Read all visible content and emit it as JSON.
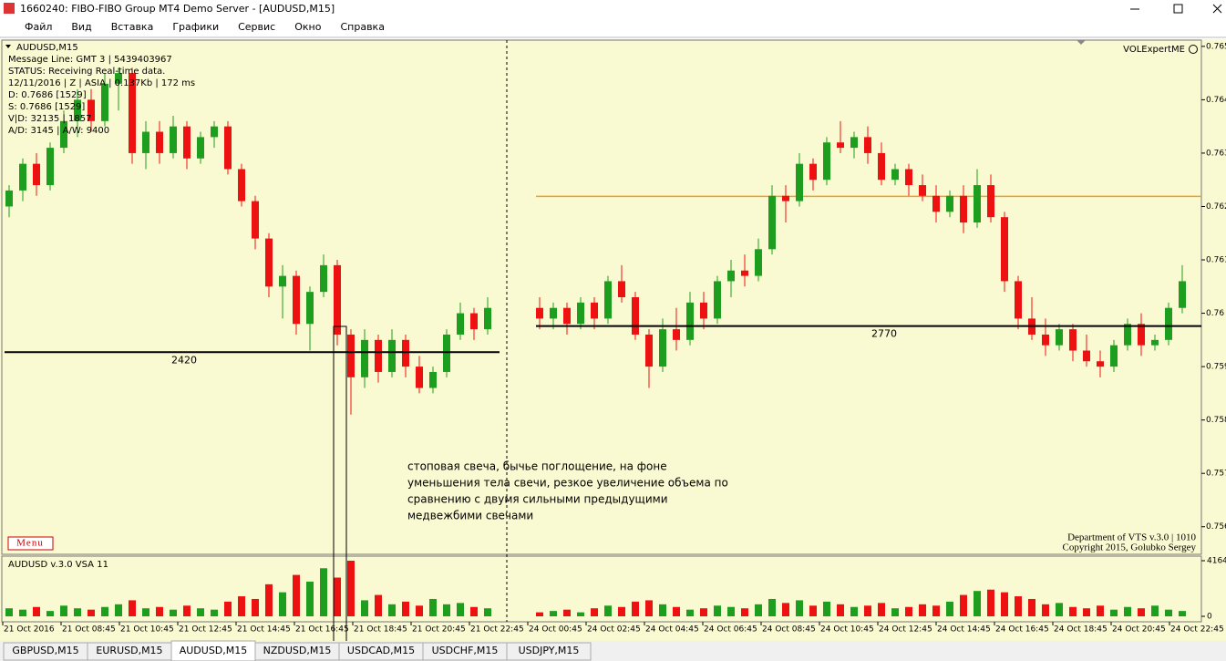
{
  "window": {
    "title": "1660240: FIBO-FIBO Group MT4 Demo Server - [AUDUSD,M15]"
  },
  "menu": [
    "Файл",
    "Вид",
    "Вставка",
    "Графики",
    "Сервис",
    "Окно",
    "Справка"
  ],
  "chart": {
    "type": "candlestick",
    "symbol": "AUDUSD,M15",
    "info": [
      "Message Line: GMT 3 | 5439403967",
      "STATUS:  Receiving Real-time data.",
      "12/11/2016 | Z | ASIA | 0.137Kb | 172 ms",
      "D: 0.7686  [1529]",
      "S: 0.7686  [1529]",
      "V|D: 32135 | 1857",
      "A/D: 3145 | A/W: 9400"
    ],
    "expert": "VOLExpertME",
    "menu_button": "Menu",
    "footer": [
      "Department of VTS  v.3.0 | 1010",
      "Copyright 2015, Golubko Sergey"
    ],
    "annotation": [
      "стоповая свеча, бычье поглощение, на фоне",
      "уменьшения тела свечи, резкое увеличение объема по",
      "сравнению с двумя сильными предыдущими",
      "медвежбими свечами"
    ],
    "bull_color": "#1e9e1e",
    "bear_color": "#ee1111",
    "ylim": [
      0.7555,
      0.7651
    ],
    "yticks": [
      0.765,
      0.764,
      0.763,
      0.762,
      0.761,
      0.76,
      0.759,
      0.758,
      0.757,
      0.756
    ],
    "x_labels": [
      "21 Oct 2016",
      "21 Oct 08:45",
      "21 Oct 10:45",
      "21 Oct 12:45",
      "21 Oct 14:45",
      "21 Oct 16:45",
      "21 Oct 18:45",
      "21 Oct 20:45",
      "21 Oct 22:45",
      "24 Oct 00:45",
      "24 Oct 02:45",
      "24 Oct 04:45",
      "24 Oct 06:45",
      "24 Oct 08:45",
      "24 Oct 10:45",
      "24 Oct 12:45",
      "24 Oct 14:45",
      "24 Oct 16:45",
      "24 Oct 18:45",
      "24 Oct 20:45",
      "24 Oct 22:45"
    ],
    "volume_panel": {
      "title": "AUDUSD v.3.0 VSA 11",
      "ylim": [
        0,
        4164
      ],
      "yticks": [
        4164,
        0
      ]
    },
    "sections": [
      {
        "level": {
          "value": 0.75927,
          "label": "2420"
        },
        "candles": [
          [
            0.762,
            0.7624,
            0.7618,
            0.7623
          ],
          [
            0.7623,
            0.7629,
            0.7621,
            0.7628
          ],
          [
            0.7628,
            0.763,
            0.7622,
            0.7624
          ],
          [
            0.7624,
            0.7632,
            0.7623,
            0.7631
          ],
          [
            0.7631,
            0.7638,
            0.763,
            0.7636
          ],
          [
            0.7636,
            0.7642,
            0.7633,
            0.764
          ],
          [
            0.764,
            0.7642,
            0.7634,
            0.7636
          ],
          [
            0.7636,
            0.7645,
            0.7635,
            0.7643
          ],
          [
            0.7643,
            0.7646,
            0.7638,
            0.7645
          ],
          [
            0.7645,
            0.7646,
            0.7628,
            0.763
          ],
          [
            0.763,
            0.7636,
            0.7627,
            0.7634
          ],
          [
            0.7634,
            0.7636,
            0.7628,
            0.763
          ],
          [
            0.763,
            0.7637,
            0.7629,
            0.7635
          ],
          [
            0.7635,
            0.7636,
            0.7627,
            0.7629
          ],
          [
            0.7629,
            0.7634,
            0.7628,
            0.7633
          ],
          [
            0.7633,
            0.7636,
            0.7631,
            0.7635
          ],
          [
            0.7635,
            0.7636,
            0.7626,
            0.7627
          ],
          [
            0.7627,
            0.7628,
            0.762,
            0.7621
          ],
          [
            0.7621,
            0.7622,
            0.7612,
            0.7614
          ],
          [
            0.7614,
            0.7615,
            0.7603,
            0.7605
          ],
          [
            0.7605,
            0.7609,
            0.7599,
            0.7607
          ],
          [
            0.7607,
            0.7608,
            0.7596,
            0.7598
          ],
          [
            0.7598,
            0.7605,
            0.7593,
            0.7604
          ],
          [
            0.7604,
            0.7611,
            0.7603,
            0.7609
          ],
          [
            0.7609,
            0.761,
            0.7594,
            0.7596
          ],
          [
            0.7596,
            0.7597,
            0.7581,
            0.7588
          ],
          [
            0.7588,
            0.7597,
            0.7586,
            0.7595
          ],
          [
            0.7595,
            0.7596,
            0.7587,
            0.7589
          ],
          [
            0.7589,
            0.7597,
            0.7588,
            0.7595
          ],
          [
            0.7595,
            0.7596,
            0.7588,
            0.759
          ],
          [
            0.759,
            0.7592,
            0.7585,
            0.7586
          ],
          [
            0.7586,
            0.759,
            0.7585,
            0.7589
          ],
          [
            0.7589,
            0.7597,
            0.7588,
            0.7596
          ],
          [
            0.7596,
            0.7602,
            0.7595,
            0.76
          ],
          [
            0.76,
            0.7601,
            0.7595,
            0.7597
          ],
          [
            0.7597,
            0.7603,
            0.7596,
            0.7601
          ]
        ],
        "volumes": [
          600,
          500,
          700,
          400,
          800,
          600,
          500,
          700,
          900,
          1200,
          600,
          700,
          500,
          800,
          600,
          500,
          1100,
          1500,
          1300,
          2400,
          1800,
          3100,
          2600,
          3600,
          2900,
          4164,
          1200,
          1600,
          900,
          1100,
          800,
          1300,
          900,
          1000,
          700,
          600
        ]
      },
      {
        "level": {
          "value": 0.75976,
          "label": "2770"
        },
        "extra_level": {
          "value": 0.76219,
          "color": "#f0a020"
        },
        "candles": [
          [
            0.7601,
            0.7603,
            0.7597,
            0.7599
          ],
          [
            0.7599,
            0.7602,
            0.7597,
            0.7601
          ],
          [
            0.7601,
            0.7602,
            0.7596,
            0.7598
          ],
          [
            0.7598,
            0.7603,
            0.7597,
            0.7602
          ],
          [
            0.7602,
            0.7603,
            0.7597,
            0.7599
          ],
          [
            0.7599,
            0.7607,
            0.7598,
            0.7606
          ],
          [
            0.7606,
            0.7609,
            0.7602,
            0.7603
          ],
          [
            0.7603,
            0.7604,
            0.7595,
            0.7596
          ],
          [
            0.7596,
            0.7597,
            0.7586,
            0.759
          ],
          [
            0.759,
            0.7599,
            0.7589,
            0.7597
          ],
          [
            0.7597,
            0.7601,
            0.7593,
            0.7595
          ],
          [
            0.7595,
            0.7604,
            0.7594,
            0.7602
          ],
          [
            0.7602,
            0.7604,
            0.7597,
            0.7599
          ],
          [
            0.7599,
            0.7607,
            0.7598,
            0.7606
          ],
          [
            0.7606,
            0.761,
            0.7603,
            0.7608
          ],
          [
            0.7608,
            0.7611,
            0.7605,
            0.7607
          ],
          [
            0.7607,
            0.7614,
            0.7606,
            0.7612
          ],
          [
            0.7612,
            0.7624,
            0.7611,
            0.7622
          ],
          [
            0.7622,
            0.7624,
            0.7617,
            0.7621
          ],
          [
            0.7621,
            0.763,
            0.762,
            0.7628
          ],
          [
            0.7628,
            0.7629,
            0.7623,
            0.7625
          ],
          [
            0.7625,
            0.7633,
            0.7624,
            0.7632
          ],
          [
            0.7632,
            0.7636,
            0.763,
            0.7631
          ],
          [
            0.7631,
            0.7634,
            0.7629,
            0.7633
          ],
          [
            0.7633,
            0.7635,
            0.7628,
            0.763
          ],
          [
            0.763,
            0.7632,
            0.7624,
            0.7625
          ],
          [
            0.7625,
            0.7628,
            0.7624,
            0.7627
          ],
          [
            0.7627,
            0.7628,
            0.7622,
            0.7624
          ],
          [
            0.7624,
            0.7626,
            0.7621,
            0.7622
          ],
          [
            0.7622,
            0.7624,
            0.7617,
            0.7619
          ],
          [
            0.7619,
            0.7623,
            0.7618,
            0.7622
          ],
          [
            0.7622,
            0.7624,
            0.7615,
            0.7617
          ],
          [
            0.7617,
            0.7627,
            0.7616,
            0.7624
          ],
          [
            0.7624,
            0.7626,
            0.7617,
            0.7618
          ],
          [
            0.7618,
            0.7619,
            0.7604,
            0.7606
          ],
          [
            0.7606,
            0.7607,
            0.7597,
            0.7599
          ],
          [
            0.7599,
            0.7603,
            0.7595,
            0.7596
          ],
          [
            0.7596,
            0.7599,
            0.7592,
            0.7594
          ],
          [
            0.7594,
            0.7598,
            0.7593,
            0.7597
          ],
          [
            0.7597,
            0.7598,
            0.7591,
            0.7593
          ],
          [
            0.7593,
            0.7596,
            0.759,
            0.7591
          ],
          [
            0.7591,
            0.7593,
            0.7588,
            0.759
          ],
          [
            0.759,
            0.7595,
            0.7589,
            0.7594
          ],
          [
            0.7594,
            0.7599,
            0.7593,
            0.7598
          ],
          [
            0.7598,
            0.76,
            0.7592,
            0.7594
          ],
          [
            0.7594,
            0.7596,
            0.7593,
            0.7595
          ],
          [
            0.7595,
            0.7602,
            0.7594,
            0.7601
          ],
          [
            0.7601,
            0.7609,
            0.76,
            0.7606
          ]
        ],
        "volumes": [
          300,
          400,
          500,
          300,
          600,
          800,
          700,
          1100,
          1200,
          900,
          700,
          500,
          600,
          800,
          700,
          600,
          900,
          1300,
          1000,
          1200,
          800,
          1100,
          900,
          700,
          800,
          1000,
          600,
          700,
          900,
          800,
          1100,
          1600,
          1900,
          2000,
          1800,
          1500,
          1300,
          900,
          1000,
          700,
          600,
          800,
          500,
          700,
          600,
          800,
          500,
          400
        ]
      }
    ]
  },
  "tabs": {
    "items": [
      "GBPUSD,M15",
      "EURUSD,M15",
      "AUDUSD,M15",
      "NZDUSD,M15",
      "USDCAD,M15",
      "USDCHF,M15",
      "USDJPY,M15"
    ],
    "active": "AUDUSD,M15"
  }
}
